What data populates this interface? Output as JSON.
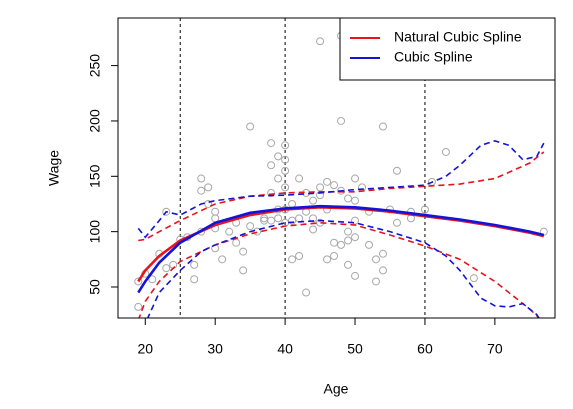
{
  "chart_data": {
    "type": "scatter",
    "x_label": "Age",
    "y_label": "Wage",
    "xlim": [
      16.1,
      78.6
    ],
    "ylim": [
      22,
      293
    ],
    "xticks": [
      20,
      30,
      40,
      50,
      60,
      70
    ],
    "yticks": [
      50,
      100,
      150,
      200,
      250
    ],
    "knots": [
      25,
      40,
      60
    ],
    "legend": "top-right",
    "points": {
      "color": "#a8a8a8",
      "x": [
        19,
        19,
        20,
        21,
        22,
        23,
        23,
        24,
        25,
        26,
        27,
        27,
        28,
        28,
        28,
        29,
        29,
        30,
        30,
        30,
        30,
        31,
        32,
        33,
        33,
        34,
        34,
        35,
        35,
        36,
        37,
        37,
        38,
        38,
        38,
        38,
        39,
        39,
        39,
        39,
        40,
        40,
        40,
        40,
        40,
        40,
        41,
        41,
        41,
        42,
        42,
        42,
        43,
        43,
        43,
        44,
        44,
        44,
        45,
        45,
        45,
        45,
        46,
        46,
        46,
        47,
        47,
        47,
        48,
        48,
        48,
        48,
        49,
        49,
        49,
        49,
        50,
        50,
        50,
        50,
        50,
        51,
        51,
        52,
        52,
        53,
        53,
        54,
        54,
        54,
        55,
        56,
        56,
        58,
        58,
        60,
        61,
        63,
        67,
        77
      ],
      "values": [
        32,
        55,
        62,
        57,
        80,
        118,
        67,
        70,
        93,
        95,
        70,
        57,
        148,
        137,
        100,
        140,
        125,
        118,
        112,
        103,
        85,
        75,
        100,
        108,
        90,
        82,
        65,
        195,
        105,
        100,
        110,
        112,
        180,
        160,
        135,
        110,
        168,
        148,
        120,
        112,
        178,
        165,
        155,
        140,
        120,
        108,
        125,
        110,
        75,
        148,
        112,
        78,
        135,
        118,
        45,
        128,
        112,
        102,
        272,
        140,
        133,
        108,
        145,
        120,
        75,
        142,
        90,
        78,
        277,
        200,
        137,
        88,
        130,
        100,
        92,
        70,
        148,
        128,
        110,
        95,
        60,
        282,
        140,
        118,
        88,
        75,
        55,
        195,
        80,
        65,
        120,
        155,
        108,
        118,
        112,
        120,
        145,
        172,
        58,
        100
      ]
    },
    "series": [
      {
        "name": "Natural Cubic Spline",
        "color": "#e8141c",
        "x": [
          19,
          20,
          22,
          25,
          30,
          35,
          40,
          45,
          50,
          55,
          60,
          65,
          70,
          75,
          77
        ],
        "values": [
          55,
          65,
          78,
          92,
          106,
          115,
          120,
          122,
          121,
          118,
          114,
          110,
          105,
          99,
          96
        ]
      },
      {
        "name": "Cubic Spline",
        "color": "#1414d8",
        "x": [
          19,
          20,
          22,
          25,
          30,
          35,
          40,
          45,
          50,
          55,
          60,
          65,
          70,
          75,
          77
        ],
        "values": [
          45,
          55,
          72,
          90,
          108,
          117,
          121,
          123,
          122,
          119,
          115,
          111,
          106,
          100,
          97
        ]
      }
    ],
    "bands": [
      {
        "color": "#e8141c",
        "x": [
          19,
          20,
          22,
          25,
          30,
          35,
          40,
          45,
          50,
          55,
          60,
          65,
          70,
          75,
          77
        ],
        "values": [
          92,
          93,
          100,
          110,
          125,
          132,
          135,
          136,
          136,
          139,
          141,
          143,
          148,
          162,
          172
        ]
      },
      {
        "color": "#e8141c",
        "x": [
          19,
          20,
          22,
          25,
          30,
          35,
          40,
          45,
          50,
          55,
          60,
          65,
          70,
          75,
          77
        ],
        "values": [
          20,
          37,
          55,
          73,
          88,
          98,
          105,
          108,
          106,
          97,
          87,
          75,
          55,
          30,
          18
        ]
      },
      {
        "color": "#1414d8",
        "x": [
          19,
          20,
          22,
          23,
          25,
          28,
          30,
          35,
          40,
          45,
          50,
          55,
          60,
          63,
          65,
          68,
          70,
          72,
          74,
          76,
          77
        ],
        "values": [
          103,
          95,
          110,
          118,
          115,
          125,
          128,
          132,
          133,
          135,
          138,
          140,
          142,
          150,
          160,
          178,
          182,
          178,
          165,
          168,
          180
        ]
      },
      {
        "color": "#1414d8",
        "x": [
          19,
          20,
          22,
          25,
          28,
          30,
          35,
          40,
          45,
          50,
          55,
          60,
          63,
          65,
          68,
          70,
          72,
          74,
          76,
          77
        ],
        "values": [
          -5,
          17,
          45,
          65,
          82,
          88,
          100,
          108,
          110,
          108,
          100,
          90,
          78,
          65,
          40,
          33,
          32,
          35,
          25,
          15
        ]
      }
    ]
  }
}
